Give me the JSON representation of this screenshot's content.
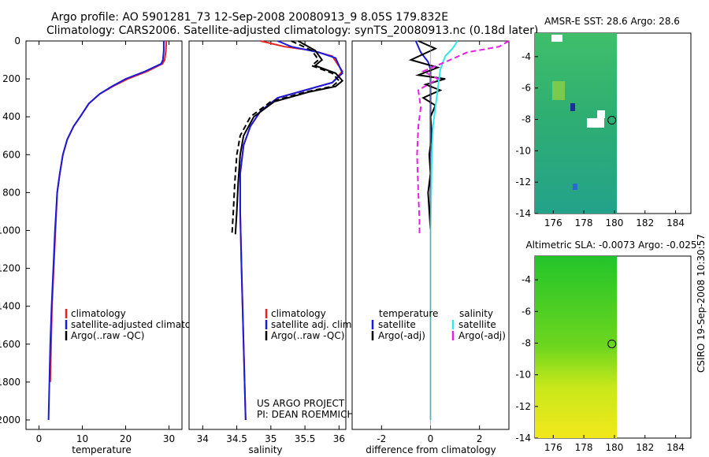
{
  "header": {
    "line1": "Argo profile: AO 5901281_73 12-Sep-2008 20080913_9 8.05S 179.832E",
    "line2": "Climatology: CARS2006. Satellite-adjusted climatology: synTS_20080913.nc (0.18d later)"
  },
  "colors": {
    "climatology": "#e8231d",
    "satellite": "#1a1adc",
    "argo": "#000000",
    "sal_satellite": "#2fe8ec",
    "sal_argo": "#e81ee8"
  },
  "chart_data": [
    {
      "id": "temperature",
      "type": "line",
      "xlabel": "temperature",
      "ylabel": "",
      "xlim": [
        -3,
        33
      ],
      "ylim": [
        2050,
        0
      ],
      "xticks": [
        0,
        10,
        20,
        30
      ],
      "yticks": [
        0,
        200,
        400,
        600,
        800,
        1000,
        1200,
        1400,
        1600,
        1800,
        2000
      ],
      "legend": [
        "climatology",
        "satellite-adjusted climatolog",
        "Argo(..raw -QC)"
      ],
      "legend_position": "lower-right",
      "series": [
        {
          "name": "climatology",
          "color_key": "climatology",
          "x": [
            29.4,
            29.3,
            29.0,
            28.5,
            25.0,
            20.5,
            17.0,
            14.0,
            11.5,
            9.5,
            8.0,
            6.5,
            5.5,
            4.8,
            4.2,
            3.8,
            3.4,
            3.0,
            2.8,
            2.6
          ],
          "y": [
            0,
            50,
            100,
            120,
            160,
            200,
            240,
            280,
            330,
            400,
            450,
            520,
            600,
            700,
            800,
            1000,
            1200,
            1400,
            1600,
            1800
          ]
        },
        {
          "name": "satellite-adjusted climatolog",
          "color_key": "satellite",
          "x": [
            28.8,
            28.8,
            28.6,
            28.2,
            24.5,
            20.0,
            16.8,
            14.0,
            11.5,
            9.5,
            8.0,
            6.5,
            5.5,
            4.8,
            4.2,
            3.7,
            3.3,
            2.9,
            2.6,
            2.4,
            2.2
          ],
          "y": [
            0,
            50,
            100,
            120,
            160,
            200,
            240,
            280,
            330,
            400,
            450,
            520,
            600,
            700,
            800,
            1000,
            1200,
            1400,
            1600,
            1800,
            2000
          ]
        }
      ]
    },
    {
      "id": "salinity",
      "type": "line",
      "xlabel": "salinity",
      "ylabel": "",
      "xlim": [
        33.8,
        36.1
      ],
      "ylim": [
        2050,
        0
      ],
      "xticks": [
        34,
        34.5,
        35,
        35.5,
        36
      ],
      "legend": [
        "climatology",
        "satellite adj. clim.",
        "Argo(..raw -QC)"
      ],
      "legend_position": "lower-right",
      "annotation": [
        "US ARGO PROJECT",
        "PI: DEAN ROEMMICH"
      ],
      "series": [
        {
          "name": "climatology",
          "color_key": "climatology",
          "x": [
            34.85,
            35.2,
            35.6,
            35.9,
            36.05,
            35.9,
            35.5,
            35.1,
            34.85,
            34.7,
            34.6,
            34.55,
            34.55,
            34.57,
            34.6,
            34.63
          ],
          "y": [
            0,
            30,
            50,
            80,
            160,
            220,
            260,
            300,
            370,
            450,
            550,
            700,
            900,
            1200,
            1600,
            2000
          ]
        },
        {
          "name": "satellite adj. clim.",
          "color_key": "satellite",
          "x": [
            35.1,
            35.3,
            35.7,
            35.95,
            36.05,
            35.9,
            35.5,
            35.1,
            34.85,
            34.7,
            34.6,
            34.55,
            34.55,
            34.57,
            34.6,
            34.63
          ],
          "y": [
            0,
            30,
            60,
            90,
            170,
            220,
            260,
            300,
            370,
            450,
            550,
            700,
            900,
            1200,
            1600,
            2000
          ]
        },
        {
          "name": "Argo(..raw -QC)",
          "color_key": "argo",
          "dash": "7,4",
          "x": [
            35.3,
            35.6,
            35.7,
            35.6,
            35.9,
            36.0,
            35.9,
            35.5,
            35.0,
            34.7,
            34.55,
            34.5,
            34.47,
            34.45,
            34.43
          ],
          "y": [
            0,
            50,
            100,
            130,
            170,
            210,
            240,
            270,
            320,
            400,
            500,
            600,
            750,
            900,
            1020
          ]
        },
        {
          "name": "Argo(..raw -QC)",
          "color_key": "argo",
          "x": [
            35.4,
            35.65,
            35.75,
            35.65,
            35.95,
            36.05,
            35.95,
            35.55,
            35.05,
            34.75,
            34.6,
            34.55,
            34.52,
            34.5,
            34.48
          ],
          "y": [
            0,
            50,
            100,
            130,
            170,
            210,
            240,
            270,
            320,
            400,
            500,
            600,
            750,
            900,
            1020
          ]
        }
      ]
    },
    {
      "id": "difference",
      "type": "line",
      "xlabel": "difference from climatology",
      "ylabel": "",
      "xlim": [
        -3.2,
        3.2
      ],
      "ylim": [
        2050,
        0
      ],
      "xticks": [
        -2,
        0,
        2
      ],
      "legend": [
        "temperature",
        "satellite",
        "Argo(-adj)",
        "salinity",
        "satellite",
        "Argo(-adj)"
      ],
      "legend_position": "lower",
      "series": [
        {
          "name": "satellite",
          "color_key": "satellite",
          "x": [
            -0.6,
            -0.4,
            -0.1,
            0.0,
            0.0,
            0.0,
            0.0,
            0.0
          ],
          "y": [
            0,
            60,
            110,
            150,
            300,
            600,
            1000,
            2000
          ]
        },
        {
          "name": "Argo(-adj)",
          "color_key": "argo",
          "x": [
            -0.5,
            0.2,
            -0.8,
            0.3,
            -0.5,
            0.6,
            -0.2,
            0.4,
            -0.3,
            0.2,
            0.0,
            0.05,
            -0.05,
            0.0,
            -0.1,
            0.0
          ],
          "y": [
            0,
            40,
            100,
            140,
            180,
            200,
            230,
            260,
            300,
            340,
            400,
            500,
            600,
            700,
            800,
            1000
          ]
        },
        {
          "name": "satellite",
          "color_key": "sal_satellite",
          "x": [
            1.1,
            0.9,
            0.6,
            0.4,
            0.3,
            0.2,
            0.1,
            0.05,
            0.0,
            0.0
          ],
          "y": [
            0,
            40,
            80,
            150,
            250,
            350,
            450,
            600,
            1000,
            2000
          ]
        },
        {
          "name": "Argo(-adj)",
          "color_key": "sal_argo",
          "dash": "7,4",
          "x": [
            3.2,
            2.8,
            1.5,
            0.8,
            -0.3,
            0.3,
            -0.5,
            -0.4,
            -0.5,
            -0.55,
            -0.5,
            -0.45,
            -0.45
          ],
          "y": [
            0,
            30,
            60,
            100,
            160,
            200,
            260,
            350,
            450,
            600,
            800,
            950,
            1020
          ]
        }
      ]
    },
    {
      "id": "sst-map",
      "type": "heatmap",
      "title": "AMSR-E SST: 28.6  Argo: 28.6",
      "xlim": [
        174.8,
        185.0
      ],
      "ylim": [
        -14,
        -2.5
      ],
      "xticks": [
        176,
        178,
        180,
        182,
        184
      ],
      "yticks": [
        -4,
        -6,
        -8,
        -10,
        -12,
        -14
      ],
      "marker": {
        "lon": 179.832,
        "lat": -8.05
      }
    },
    {
      "id": "sla-map",
      "type": "heatmap",
      "title": "Altimetric SLA: -0.0073  Argo: -0.025",
      "xlim": [
        174.8,
        185.0
      ],
      "ylim": [
        -14,
        -2.5
      ],
      "xticks": [
        176,
        178,
        180,
        182,
        184
      ],
      "yticks": [
        -4,
        -6,
        -8,
        -10,
        -12,
        -14
      ],
      "marker": {
        "lon": 179.832,
        "lat": -8.05
      }
    }
  ],
  "side_label": "CSIRO 19-Sep-2008 10:30:57"
}
